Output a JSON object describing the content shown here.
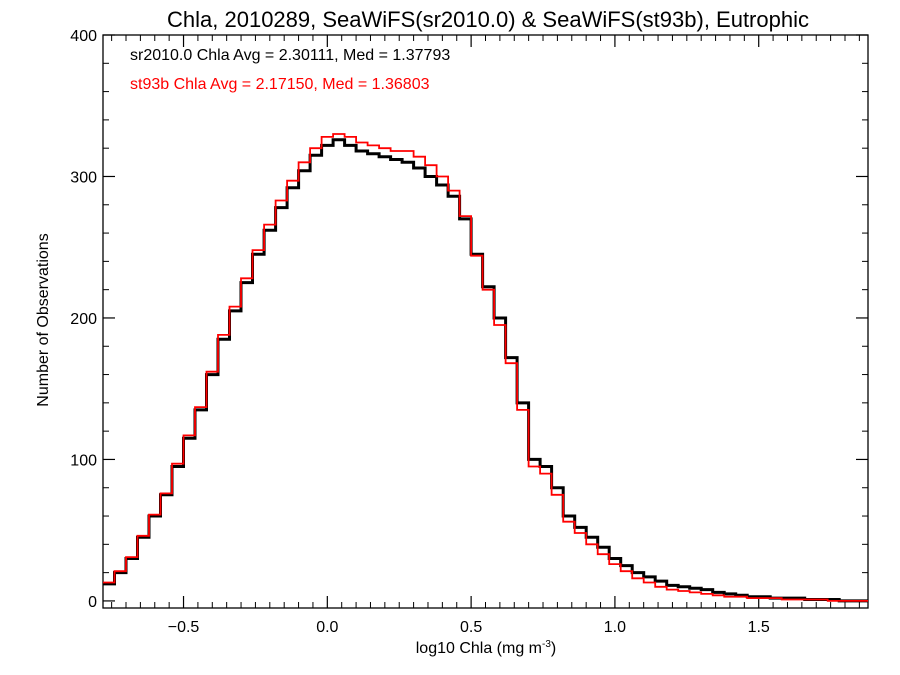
{
  "chart_data": {
    "type": "line",
    "title": "Chla, 2010289, SeaWiFS(sr2010.0) & SeaWiFS(st93b), Eutrophic",
    "xlabel": "log10 Chla (mg m",
    "xlabel_superscript": "-3",
    "xlabel_suffix": ")",
    "ylabel": "Number of Observations",
    "xlim": [
      -0.78,
      1.88
    ],
    "ylim": [
      -5,
      400
    ],
    "xticks": [
      -0.5,
      0.0,
      0.5,
      1.0,
      1.5
    ],
    "xtick_labels": [
      "−0.5",
      "0.0",
      "0.5",
      "1.0",
      "1.5"
    ],
    "yticks": [
      0,
      100,
      200,
      300,
      400
    ],
    "ytick_labels": [
      "0",
      "100",
      "200",
      "300",
      "400"
    ],
    "grid": false,
    "legend_position": "top-left",
    "annotations": [
      {
        "text": "sr2010.0 Chla Avg = 2.30111, Med = 1.37793",
        "color": "#000000"
      },
      {
        "text": "st93b Chla Avg = 2.17150, Med = 1.36803",
        "color": "#ff0000"
      }
    ],
    "series": [
      {
        "color": "#000000",
        "stroke_width": 3,
        "x": [
          -0.78,
          -0.74,
          -0.7,
          -0.66,
          -0.62,
          -0.58,
          -0.54,
          -0.5,
          -0.46,
          -0.42,
          -0.38,
          -0.34,
          -0.3,
          -0.26,
          -0.22,
          -0.18,
          -0.14,
          -0.1,
          -0.06,
          -0.02,
          0.02,
          0.06,
          0.1,
          0.14,
          0.18,
          0.22,
          0.26,
          0.3,
          0.34,
          0.38,
          0.42,
          0.46,
          0.5,
          0.54,
          0.58,
          0.62,
          0.66,
          0.7,
          0.74,
          0.78,
          0.82,
          0.86,
          0.9,
          0.94,
          0.98,
          1.02,
          1.06,
          1.1,
          1.14,
          1.18,
          1.22,
          1.26,
          1.3,
          1.34,
          1.38,
          1.42,
          1.46,
          1.5,
          1.54,
          1.58,
          1.62,
          1.66,
          1.7,
          1.74,
          1.78,
          1.82,
          1.86
        ],
        "y": [
          12,
          20,
          30,
          45,
          60,
          75,
          95,
          115,
          135,
          160,
          185,
          205,
          225,
          245,
          262,
          278,
          292,
          304,
          315,
          322,
          326,
          322,
          318,
          316,
          314,
          312,
          310,
          306,
          300,
          294,
          286,
          270,
          245,
          222,
          200,
          172,
          140,
          100,
          95,
          80,
          60,
          52,
          45,
          38,
          30,
          25,
          20,
          17,
          14,
          11,
          10,
          9,
          8,
          6,
          5,
          4,
          3,
          3,
          2,
          2,
          2,
          1,
          1,
          1,
          0,
          0,
          0
        ]
      },
      {
        "color": "#ff0000",
        "stroke_width": 1.8,
        "x": [
          -0.78,
          -0.74,
          -0.7,
          -0.66,
          -0.62,
          -0.58,
          -0.54,
          -0.5,
          -0.46,
          -0.42,
          -0.38,
          -0.34,
          -0.3,
          -0.26,
          -0.22,
          -0.18,
          -0.14,
          -0.1,
          -0.06,
          -0.02,
          0.02,
          0.06,
          0.1,
          0.14,
          0.18,
          0.22,
          0.26,
          0.3,
          0.34,
          0.38,
          0.42,
          0.46,
          0.5,
          0.54,
          0.58,
          0.62,
          0.66,
          0.7,
          0.74,
          0.78,
          0.82,
          0.86,
          0.9,
          0.94,
          0.98,
          1.02,
          1.06,
          1.1,
          1.14,
          1.18,
          1.22,
          1.26,
          1.3,
          1.34,
          1.38,
          1.42,
          1.46,
          1.5,
          1.54,
          1.58,
          1.62,
          1.66,
          1.7,
          1.74,
          1.78,
          1.82,
          1.86
        ],
        "y": [
          13,
          21,
          31,
          46,
          61,
          76,
          97,
          117,
          137,
          162,
          188,
          208,
          228,
          248,
          266,
          283,
          297,
          310,
          320,
          328,
          330,
          328,
          324,
          322,
          320,
          318,
          318,
          314,
          308,
          300,
          290,
          272,
          244,
          220,
          195,
          168,
          135,
          95,
          90,
          75,
          56,
          48,
          40,
          33,
          26,
          21,
          16,
          13,
          10,
          8,
          7,
          6,
          5,
          4,
          3,
          3,
          2,
          2,
          2,
          1,
          1,
          1,
          1,
          0,
          0,
          0,
          0
        ]
      }
    ]
  }
}
